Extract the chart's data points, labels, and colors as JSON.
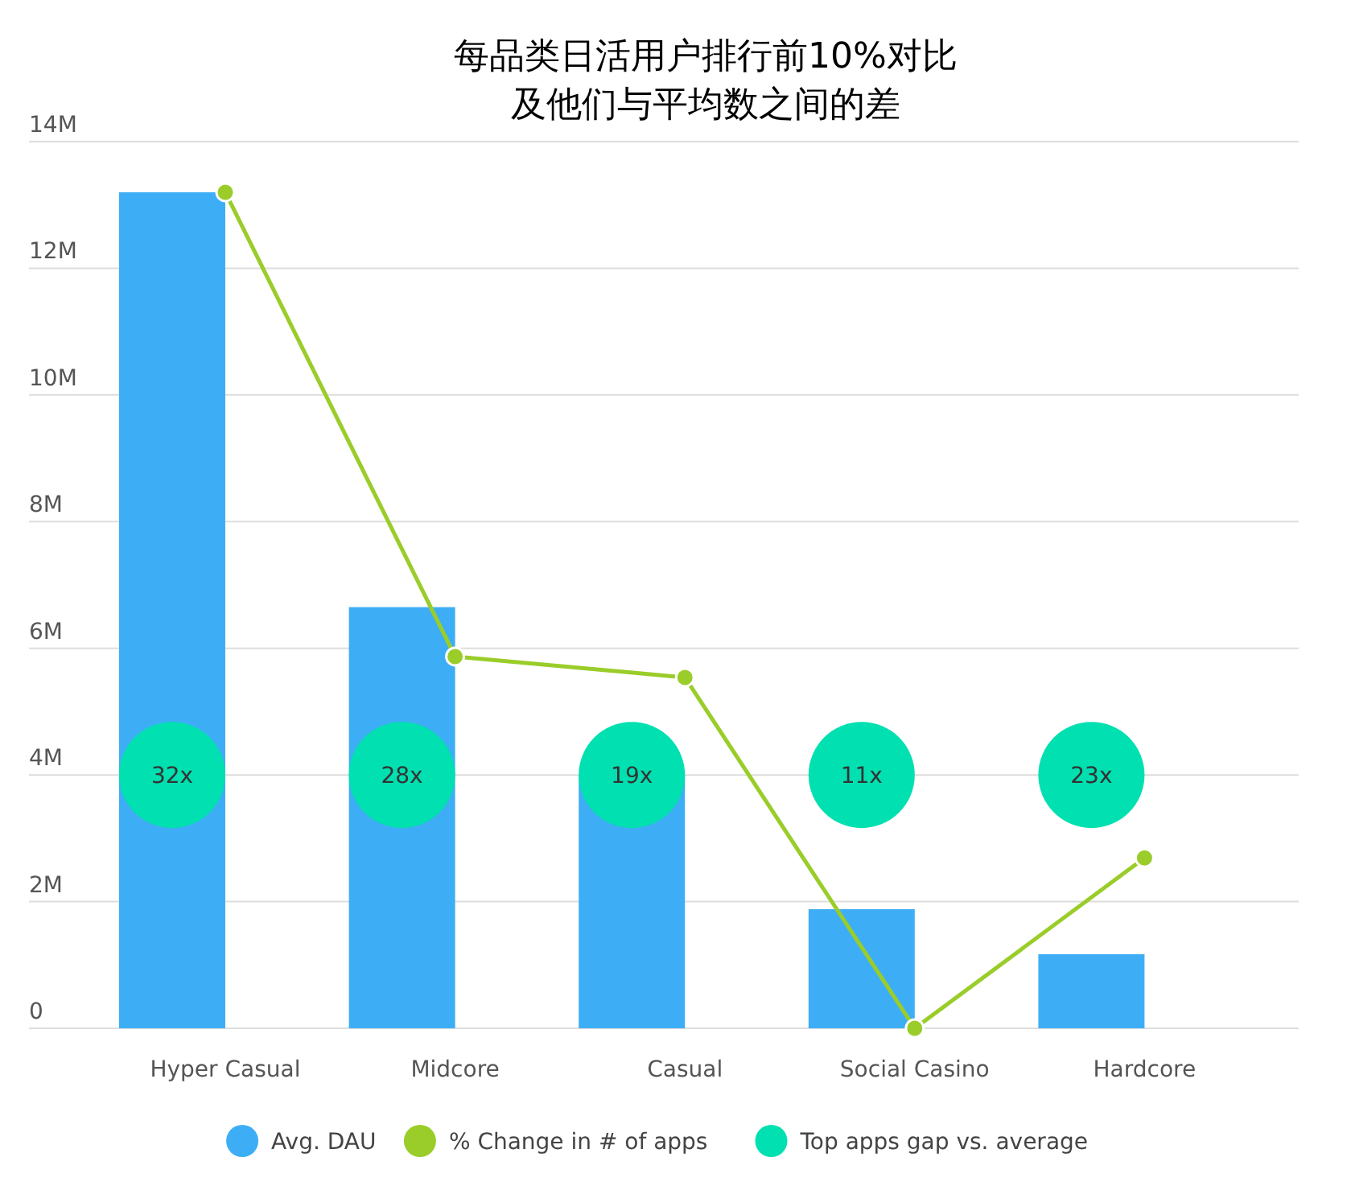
{
  "chart_data": {
    "type": "bar",
    "title": "每品类日活用户排行前10%对比及他们与平均数之间的差",
    "categories": [
      "Hyper Casual",
      "Midcore",
      "Casual",
      "Social Casino",
      "Hardcore"
    ],
    "series": [
      {
        "name": "Avg. DAU",
        "color": "#3daef5",
        "values": [
          13200000,
          6650000,
          4000000,
          1880000,
          1170000
        ]
      },
      {
        "name": "% Change in # of apps",
        "type": "line",
        "color": "#9acd2a",
        "marker": "circle",
        "values": [
          13200000,
          5870000,
          5540000,
          0,
          2690000
        ]
      },
      {
        "name": "Top apps gap vs. average",
        "type": "scatter",
        "color": "#00e0b0",
        "values": [
          4000000,
          4000000,
          4000000,
          4000000,
          4000000
        ]
      }
    ],
    "annotations": [
      {
        "text": "32x",
        "x": "Hyper Casual",
        "y": 4000000
      },
      {
        "text": "28x",
        "x": "Midcore",
        "y": 4000000
      },
      {
        "text": "19x",
        "x": "Casual",
        "y": 4000000
      },
      {
        "text": "11x",
        "x": "Social Casino",
        "y": 4000000
      },
      {
        "text": "23x",
        "x": "Hardcore",
        "y": 4000000
      }
    ],
    "ylim": [
      0,
      14000000
    ],
    "yticks": [
      {
        "value": 0,
        "label": "0"
      },
      {
        "value": 2000000,
        "label": "2M"
      },
      {
        "value": 4000000,
        "label": "4M"
      },
      {
        "value": 6000000,
        "label": "6M"
      },
      {
        "value": 8000000,
        "label": "8M"
      },
      {
        "value": 10000000,
        "label": "10M"
      },
      {
        "value": 12000000,
        "label": "12M"
      },
      {
        "value": 14000000,
        "label": "14M"
      }
    ],
    "grid": "y",
    "legend": "bottom"
  }
}
